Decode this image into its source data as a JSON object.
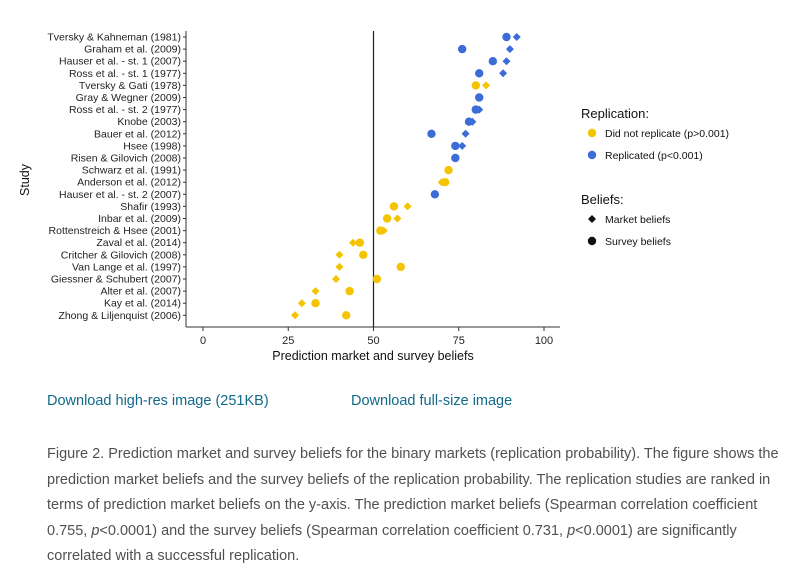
{
  "chart_data": {
    "type": "scatter",
    "xlabel": "Prediction market and survey beliefs",
    "ylabel": "Study",
    "xlim": [
      0,
      100
    ],
    "xticks": [
      "0",
      "25",
      "50",
      "75",
      "100"
    ],
    "xtick_values": [
      0,
      25,
      50,
      75,
      100
    ],
    "reference_line_x": 50,
    "grid": false,
    "legend_position": "right",
    "legend": {
      "replication_title": "Replication:",
      "replication_entries": [
        {
          "label": "Did not replicate (p>0.001)",
          "color": "#f5c400"
        },
        {
          "label": "Replicated (p<0.001)",
          "color": "#3c6cd8"
        }
      ],
      "beliefs_title": "Beliefs:",
      "beliefs_entries": [
        {
          "label": "Market beliefs",
          "shape": "diamond"
        },
        {
          "label": "Survey beliefs",
          "shape": "circle"
        }
      ]
    },
    "studies": [
      {
        "name": "Tversky & Kahneman (1981)",
        "replicated": true,
        "market": 92,
        "survey": 89
      },
      {
        "name": "Graham et al. (2009)",
        "replicated": true,
        "market": 90,
        "survey": 76
      },
      {
        "name": "Hauser et al. - st. 1 (2007)",
        "replicated": true,
        "market": 89,
        "survey": 85
      },
      {
        "name": "Ross et al. - st. 1 (1977)",
        "replicated": true,
        "market": 88,
        "survey": 81
      },
      {
        "name": "Tversky & Gati (1978)",
        "replicated": false,
        "market": 83,
        "survey": 80
      },
      {
        "name": "Gray & Wegner (2009)",
        "replicated": true,
        "market": 81,
        "survey": 81
      },
      {
        "name": "Ross et al. - st. 2 (1977)",
        "replicated": true,
        "market": 81,
        "survey": 80
      },
      {
        "name": "Knobe (2003)",
        "replicated": true,
        "market": 79,
        "survey": 78
      },
      {
        "name": "Bauer et al. (2012)",
        "replicated": true,
        "market": 77,
        "survey": 67
      },
      {
        "name": "Hsee (1998)",
        "replicated": true,
        "market": 76,
        "survey": 74
      },
      {
        "name": "Risen & Gilovich (2008)",
        "replicated": true,
        "market": 74,
        "survey": 74
      },
      {
        "name": "Schwarz et al. (1991)",
        "replicated": false,
        "market": 72,
        "survey": 72
      },
      {
        "name": "Anderson et al. (2012)",
        "replicated": false,
        "market": 70,
        "survey": 71
      },
      {
        "name": "Hauser et al. - st. 2 (2007)",
        "replicated": true,
        "market": 68,
        "survey": 68
      },
      {
        "name": "Shafir (1993)",
        "replicated": false,
        "market": 60,
        "survey": 56
      },
      {
        "name": "Inbar et al. (2009)",
        "replicated": false,
        "market": 57,
        "survey": 54
      },
      {
        "name": "Rottenstreich & Hsee (2001)",
        "replicated": false,
        "market": 53,
        "survey": 52
      },
      {
        "name": "Zaval et al. (2014)",
        "replicated": false,
        "market": 44,
        "survey": 46
      },
      {
        "name": "Critcher & Gilovich (2008)",
        "replicated": false,
        "market": 40,
        "survey": 47
      },
      {
        "name": "Van Lange et al. (1997)",
        "replicated": false,
        "market": 40,
        "survey": 58
      },
      {
        "name": "Giessner & Schubert (2007)",
        "replicated": false,
        "market": 39,
        "survey": 51
      },
      {
        "name": "Alter et al. (2007)",
        "replicated": false,
        "market": 33,
        "survey": 43
      },
      {
        "name": "Kay et al. (2014)",
        "replicated": false,
        "market": 29,
        "survey": 33
      },
      {
        "name": "Zhong & Liljenquist (2006)",
        "replicated": false,
        "market": 27,
        "survey": 42
      }
    ]
  },
  "links": {
    "hires": "Download high-res image (251KB)",
    "full": "Download full-size image"
  },
  "caption": {
    "part1": "Figure 2. Prediction market and survey beliefs for the binary markets (replication probability). The figure shows the prediction market beliefs and the survey beliefs of the replication probability. The replication studies are ranked in terms of prediction market beliefs on the y-axis. The prediction market beliefs (Spearman correlation coefficient 0.755, ",
    "p_label": "p",
    "part2": "<0.0001) and the survey beliefs (Spearman correlation coefficient 0.731, ",
    "part3": "<0.0001) are significantly correlated with a successful replication."
  }
}
